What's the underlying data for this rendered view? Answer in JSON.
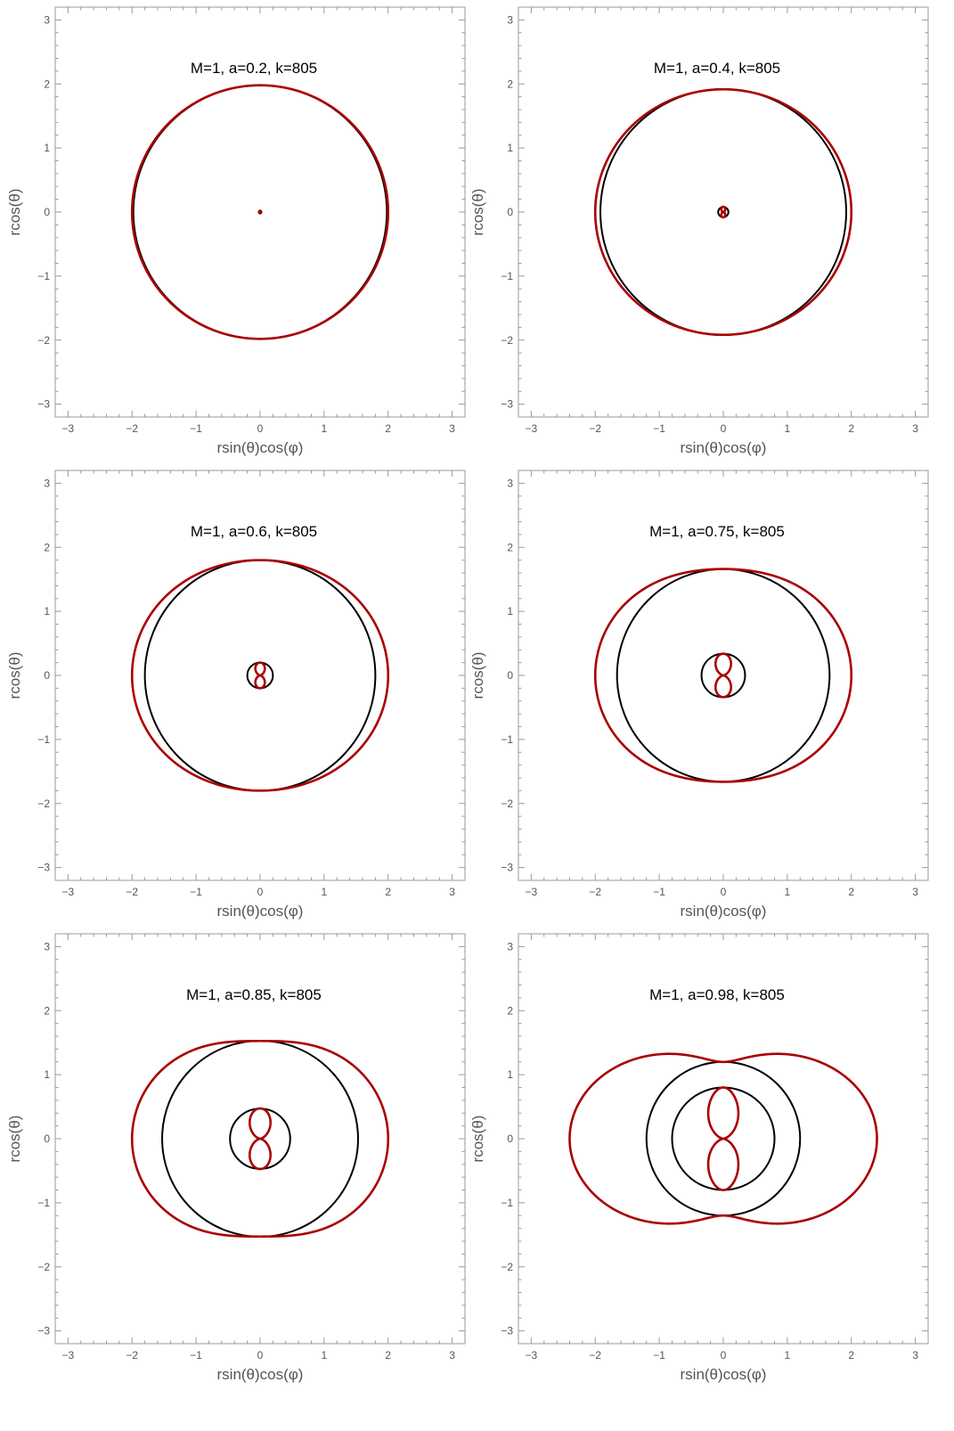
{
  "figure": {
    "rows": 3,
    "cols": 2,
    "curve_colors": {
      "horizon": "#000000",
      "ergosurface": "#aa0000"
    }
  },
  "chart_data": [
    {
      "type": "line",
      "title": "M=1, a=0.2, k=805",
      "params": {
        "M": 1,
        "a": 0.2,
        "k": 805
      },
      "xlabel": "rsin(θ)cos(φ)",
      "ylabel": "rcos(θ)",
      "xlim": [
        -3.2,
        3.2
      ],
      "ylim": [
        -3.2,
        3.2
      ],
      "ticks": [
        -3,
        -2,
        -1,
        0,
        1,
        2,
        3
      ],
      "horizons": [
        1.98,
        0.02
      ],
      "ergo_scale": 1.0
    },
    {
      "type": "line",
      "title": "M=1, a=0.4, k=805",
      "params": {
        "M": 1,
        "a": 0.4,
        "k": 805
      },
      "xlabel": "rsin(θ)cos(φ)",
      "ylabel": "rcos(θ)",
      "xlim": [
        -3.2,
        3.2
      ],
      "ylim": [
        -3.2,
        3.2
      ],
      "ticks": [
        -3,
        -2,
        -1,
        0,
        1,
        2,
        3
      ],
      "horizons": [
        1.92,
        0.08
      ],
      "ergo_scale": 1.0
    },
    {
      "type": "line",
      "title": "M=1, a=0.6, k=805",
      "params": {
        "M": 1,
        "a": 0.6,
        "k": 805
      },
      "xlabel": "rsin(θ)cos(φ)",
      "ylabel": "rcos(θ)",
      "xlim": [
        -3.2,
        3.2
      ],
      "ylim": [
        -3.2,
        3.2
      ],
      "ticks": [
        -3,
        -2,
        -1,
        0,
        1,
        2,
        3
      ],
      "horizons": [
        1.8,
        0.2
      ],
      "ergo_scale": 1.0
    },
    {
      "type": "line",
      "title": "M=1, a=0.75, k=805",
      "params": {
        "M": 1,
        "a": 0.75,
        "k": 805
      },
      "xlabel": "rsin(θ)cos(φ)",
      "ylabel": "rcos(θ)",
      "xlim": [
        -3.2,
        3.2
      ],
      "ylim": [
        -3.2,
        3.2
      ],
      "ticks": [
        -3,
        -2,
        -1,
        0,
        1,
        2,
        3
      ],
      "horizons": [
        1.66,
        0.34
      ],
      "ergo_scale": 1.0
    },
    {
      "type": "line",
      "title": "M=1, a=0.85, k=805",
      "params": {
        "M": 1,
        "a": 0.85,
        "k": 805
      },
      "xlabel": "rsin(θ)cos(φ)",
      "ylabel": "rcos(θ)",
      "xlim": [
        -3.2,
        3.2
      ],
      "ylim": [
        -3.2,
        3.2
      ],
      "ticks": [
        -3,
        -2,
        -1,
        0,
        1,
        2,
        3
      ],
      "horizons": [
        1.53,
        0.47
      ],
      "ergo_scale": 1.0
    },
    {
      "type": "line",
      "title": "M=1, a=0.98, k=805",
      "params": {
        "M": 1,
        "a": 0.98,
        "k": 805
      },
      "xlabel": "rsin(θ)cos(φ)",
      "ylabel": "rcos(θ)",
      "xlim": [
        -3.2,
        3.2
      ],
      "ylim": [
        -3.2,
        3.2
      ],
      "ticks": [
        -3,
        -2,
        -1,
        0,
        1,
        2,
        3
      ],
      "horizons": [
        1.2,
        0.8
      ],
      "ergo_scale": 1.2
    }
  ]
}
